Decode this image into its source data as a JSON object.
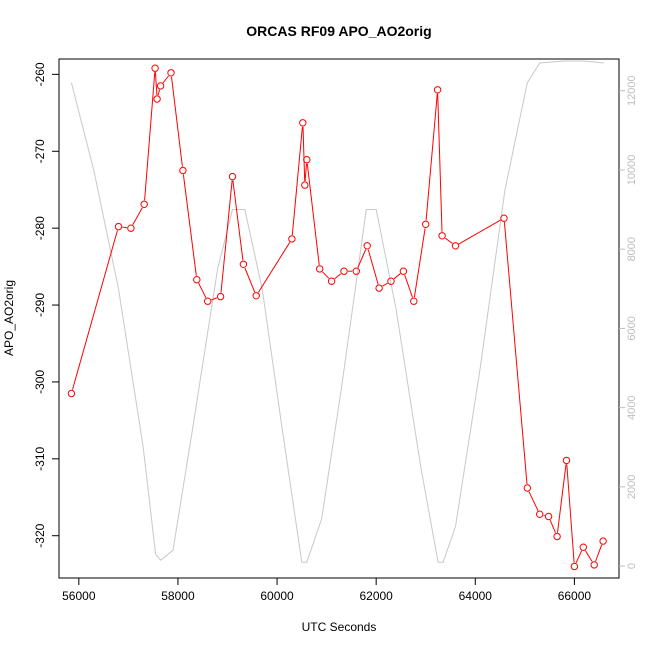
{
  "chart_data": {
    "type": "line",
    "title": "ORCAS RF09 APO_AO2orig",
    "xlabel": "UTC Seconds",
    "ylabel": "APO_AO2orig",
    "xlim": [
      55600,
      66900
    ],
    "ylim": [
      -325.5,
      -258.0
    ],
    "y2lim": [
      -300,
      12800
    ],
    "x_ticks": [
      56000,
      58000,
      60000,
      62000,
      64000,
      66000
    ],
    "y_ticks": [
      -320,
      -310,
      -300,
      -290,
      -280,
      -270,
      -260
    ],
    "y2_ticks": [
      0,
      2000,
      4000,
      6000,
      8000,
      10000,
      12000
    ],
    "grid": false,
    "colors": {
      "series": "#ff0000",
      "altitude": "#c8c8c8",
      "axis": "#000000",
      "right_axis": "#bdbdbd"
    },
    "series": [
      {
        "axis": "left",
        "style": "line-points",
        "x": [
          55850,
          56800,
          57050,
          57320,
          57540,
          57580,
          57650,
          57860,
          58100,
          58380,
          58600,
          58860,
          59100,
          59320,
          59580,
          60300,
          60520,
          60560,
          60600,
          60860,
          61100,
          61350,
          61600,
          61820,
          62060,
          62300,
          62550,
          62760,
          63000,
          63240,
          63330,
          63600,
          64580,
          65050,
          65300,
          65480,
          65650,
          65840,
          66000,
          66180,
          66400,
          66580
        ],
        "y": [
          -301.5,
          -279.8,
          -280.0,
          -276.9,
          -259.2,
          -263.2,
          -261.5,
          -259.8,
          -272.5,
          -286.7,
          -289.5,
          -288.9,
          -273.3,
          -284.7,
          -288.8,
          -281.4,
          -266.3,
          -274.4,
          -271.1,
          -285.3,
          -286.9,
          -285.6,
          -285.6,
          -282.3,
          -287.8,
          -286.9,
          -285.6,
          -289.5,
          -279.5,
          -262.0,
          -281.0,
          -282.3,
          -278.7,
          -313.8,
          -317.2,
          -317.5,
          -320.1,
          -310.2,
          -324.0,
          -321.5,
          -323.8,
          -320.7
        ]
      },
      {
        "axis": "right",
        "style": "line",
        "x": [
          55850,
          56300,
          56800,
          57300,
          57550,
          57650,
          57900,
          58300,
          58800,
          59100,
          59350,
          59700,
          60100,
          60500,
          60600,
          60900,
          61300,
          61800,
          62000,
          62400,
          62900,
          63250,
          63350,
          63600,
          64100,
          64600,
          65050,
          65300,
          65800,
          66200,
          66600
        ],
        "y": [
          12200,
          10000,
          7000,
          3000,
          300,
          150,
          400,
          3500,
          7500,
          9000,
          9000,
          7000,
          3500,
          100,
          100,
          1200,
          4500,
          9000,
          9000,
          6500,
          2500,
          100,
          100,
          1000,
          5000,
          9500,
          12200,
          12700,
          12750,
          12750,
          12700
        ]
      }
    ]
  }
}
